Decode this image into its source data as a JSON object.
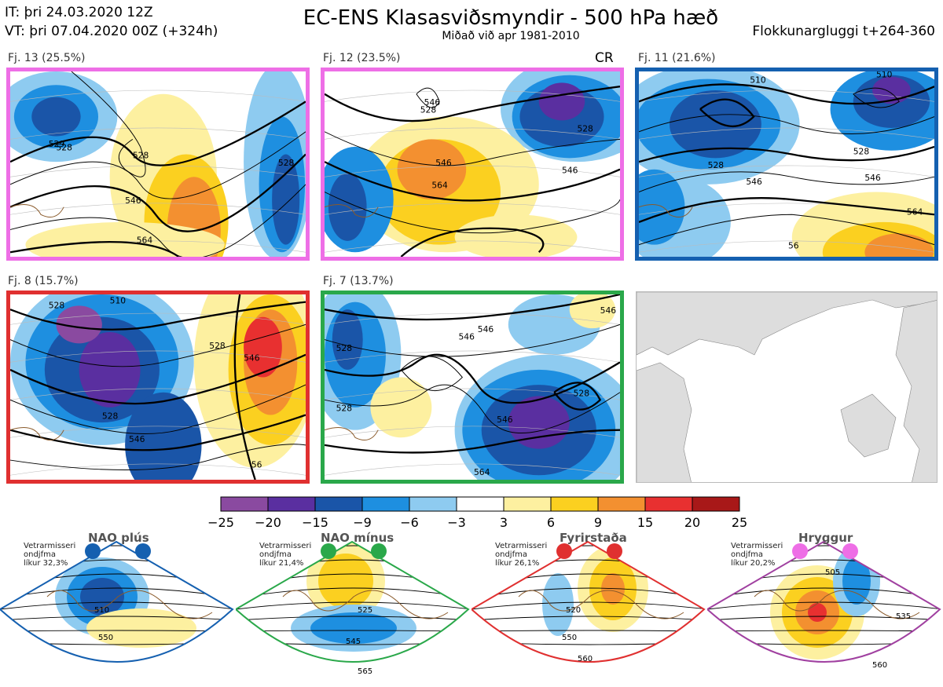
{
  "header": {
    "it_line": "IT: þri 24.03.2020 12Z",
    "vt_line": "VT: þri 07.04.2020 00Z  (+324h)",
    "title": "EC-ENS Klasasviðsmyndir - 500 hPa hæð",
    "subtitle": "Miðað við apr 1981-2010",
    "window": "Flokkunargluggi t+264-360"
  },
  "chart_data": {
    "type": "heatmap",
    "panels": [
      {
        "label": "Fj. 13 (25.5%)",
        "frame_color": "#ee6ee6",
        "contour_labels": [
          "528",
          "529",
          "528",
          "546",
          "564",
          "528"
        ],
        "extra": ""
      },
      {
        "label": "Fj. 12 (23.5%)",
        "frame_color": "#ee6ee6",
        "contour_labels": [
          "546",
          "528",
          "528",
          "546",
          "564",
          "546"
        ],
        "extra": "CR"
      },
      {
        "label": "Fj. 11 (21.6%)",
        "frame_color": "#1560b0",
        "contour_labels": [
          "510",
          "510",
          "528",
          "528",
          "546",
          "546",
          "564",
          "56"
        ],
        "extra": ""
      },
      {
        "label": "Fj. 8 (15.7%)",
        "frame_color": "#e03030",
        "contour_labels": [
          "528",
          "510",
          "528",
          "546",
          "546",
          "528",
          "56"
        ],
        "extra": ""
      },
      {
        "label": "Fj. 7 (13.7%)",
        "frame_color": "#2aa84a",
        "contour_labels": [
          "528",
          "546",
          "528",
          "546",
          "564",
          "528",
          "546",
          "546"
        ],
        "extra": ""
      }
    ],
    "colorbar": {
      "ticks": [
        "−25",
        "−20",
        "−15",
        "−9",
        "−6",
        "−3",
        "3",
        "6",
        "9",
        "15",
        "20",
        "25"
      ],
      "colors": [
        "#8a4aa0",
        "#5a2fa0",
        "#1a55a8",
        "#1e8fe0",
        "#8ecbf0",
        "#ffffff",
        "#fdf0a0",
        "#fbd020",
        "#f39030",
        "#e83030",
        "#a81818"
      ]
    },
    "regimes": [
      {
        "name": "NAO plús",
        "note": [
          "Vetrarmisseri",
          "ondjfma",
          "líkur 32,3%"
        ],
        "color": "#1560b0",
        "contour_labels": [
          "510",
          "550"
        ]
      },
      {
        "name": "NAO mínus",
        "note": [
          "Vetrarmisseri",
          "ondjfma",
          "líkur 21,4%"
        ],
        "color": "#2aa84a",
        "contour_labels": [
          "525",
          "545",
          "565"
        ]
      },
      {
        "name": "Fyrirstaða",
        "note": [
          "Vetrarmisseri",
          "ondjfma",
          "líkur 26,1%"
        ],
        "color": "#e03030",
        "contour_labels": [
          "520",
          "550",
          "560"
        ]
      },
      {
        "name": "Hryggur",
        "note": [
          "Vetrarmisseri",
          "ondjfma",
          "líkur 20,2%"
        ],
        "color": "#a040a0",
        "dot_color": "#ee6ee6",
        "contour_labels": [
          "505",
          "535",
          "560"
        ]
      }
    ]
  }
}
